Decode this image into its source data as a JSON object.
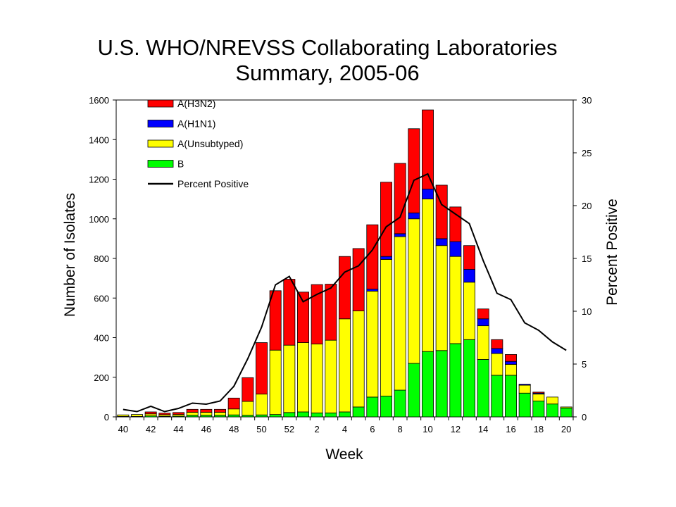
{
  "chart_data": {
    "type": "bar",
    "stacked": true,
    "title": "U.S. WHO/NREVSS Collaborating Laboratories",
    "subtitle": "Summary, 2005-06",
    "xlabel": "Week",
    "ylabel": "Number of Isolates",
    "y2label": "Percent Positive",
    "ylim": [
      0,
      1600
    ],
    "y2lim": [
      0,
      30
    ],
    "yticks": [
      "0",
      "200",
      "400",
      "600",
      "800",
      "1000",
      "1200",
      "1400",
      "1600"
    ],
    "y2ticks": [
      "0",
      "5",
      "10",
      "15",
      "20",
      "25",
      "30"
    ],
    "categories": [
      "40",
      "41",
      "42",
      "43",
      "44",
      "45",
      "46",
      "47",
      "48",
      "49",
      "50",
      "51",
      "52",
      "1",
      "2",
      "3",
      "4",
      "5",
      "6",
      "7",
      "8",
      "9",
      "10",
      "11",
      "12",
      "13",
      "14",
      "15",
      "16",
      "17",
      "18",
      "19",
      "20"
    ],
    "xticklabels": [
      "40",
      "",
      "42",
      "",
      "44",
      "",
      "46",
      "",
      "48",
      "",
      "50",
      "",
      "52",
      "",
      "2",
      "",
      "4",
      "",
      "6",
      "",
      "8",
      "",
      "10",
      "",
      "12",
      "",
      "14",
      "",
      "16",
      "",
      "18",
      "",
      "20"
    ],
    "legend_position": "top-left",
    "series": [
      {
        "name": "B",
        "color": "#00ff00",
        "values": [
          2,
          2,
          5,
          3,
          4,
          8,
          8,
          8,
          10,
          8,
          10,
          12,
          22,
          25,
          20,
          20,
          25,
          50,
          100,
          105,
          135,
          270,
          330,
          335,
          370,
          390,
          290,
          210,
          210,
          120,
          80,
          65,
          45
        ]
      },
      {
        "name": "A(Unsubtyped)",
        "color": "#ffff00",
        "values": [
          8,
          10,
          10,
          8,
          8,
          15,
          15,
          15,
          30,
          70,
          105,
          325,
          340,
          350,
          348,
          367,
          470,
          485,
          535,
          690,
          775,
          730,
          770,
          530,
          440,
          290,
          170,
          110,
          55,
          40,
          35,
          35,
          5
        ]
      },
      {
        "name": "A(H1N1)",
        "color": "#0000ff",
        "values": [
          0,
          0,
          0,
          0,
          0,
          0,
          0,
          0,
          0,
          0,
          0,
          0,
          0,
          0,
          0,
          0,
          0,
          0,
          10,
          15,
          15,
          30,
          50,
          35,
          75,
          65,
          35,
          25,
          15,
          5,
          5,
          0,
          0
        ]
      },
      {
        "name": "A(H3N2)",
        "color": "#ff0000",
        "values": [
          0,
          0,
          10,
          8,
          10,
          15,
          15,
          15,
          55,
          120,
          260,
          300,
          333,
          255,
          300,
          283,
          315,
          315,
          325,
          375,
          355,
          425,
          400,
          270,
          175,
          120,
          50,
          45,
          35,
          0,
          5,
          0,
          0
        ]
      }
    ],
    "line_series": {
      "name": "Percent Positive",
      "color": "#000000",
      "axis": "right",
      "values": [
        0.7,
        0.5,
        1.0,
        0.5,
        0.8,
        1.3,
        1.2,
        1.5,
        2.9,
        5.5,
        8.5,
        12.5,
        13.3,
        10.9,
        11.6,
        12.2,
        13.7,
        14.3,
        15.8,
        18.0,
        18.9,
        22.4,
        23.0,
        20.1,
        19.2,
        18.3,
        14.8,
        11.7,
        11.1,
        8.9,
        8.2,
        7.1,
        6.3
      ]
    },
    "legend_order": [
      "A(H3N2)",
      "A(H1N1)",
      "A(Unsubtyped)",
      "B",
      "Percent Positive"
    ]
  }
}
